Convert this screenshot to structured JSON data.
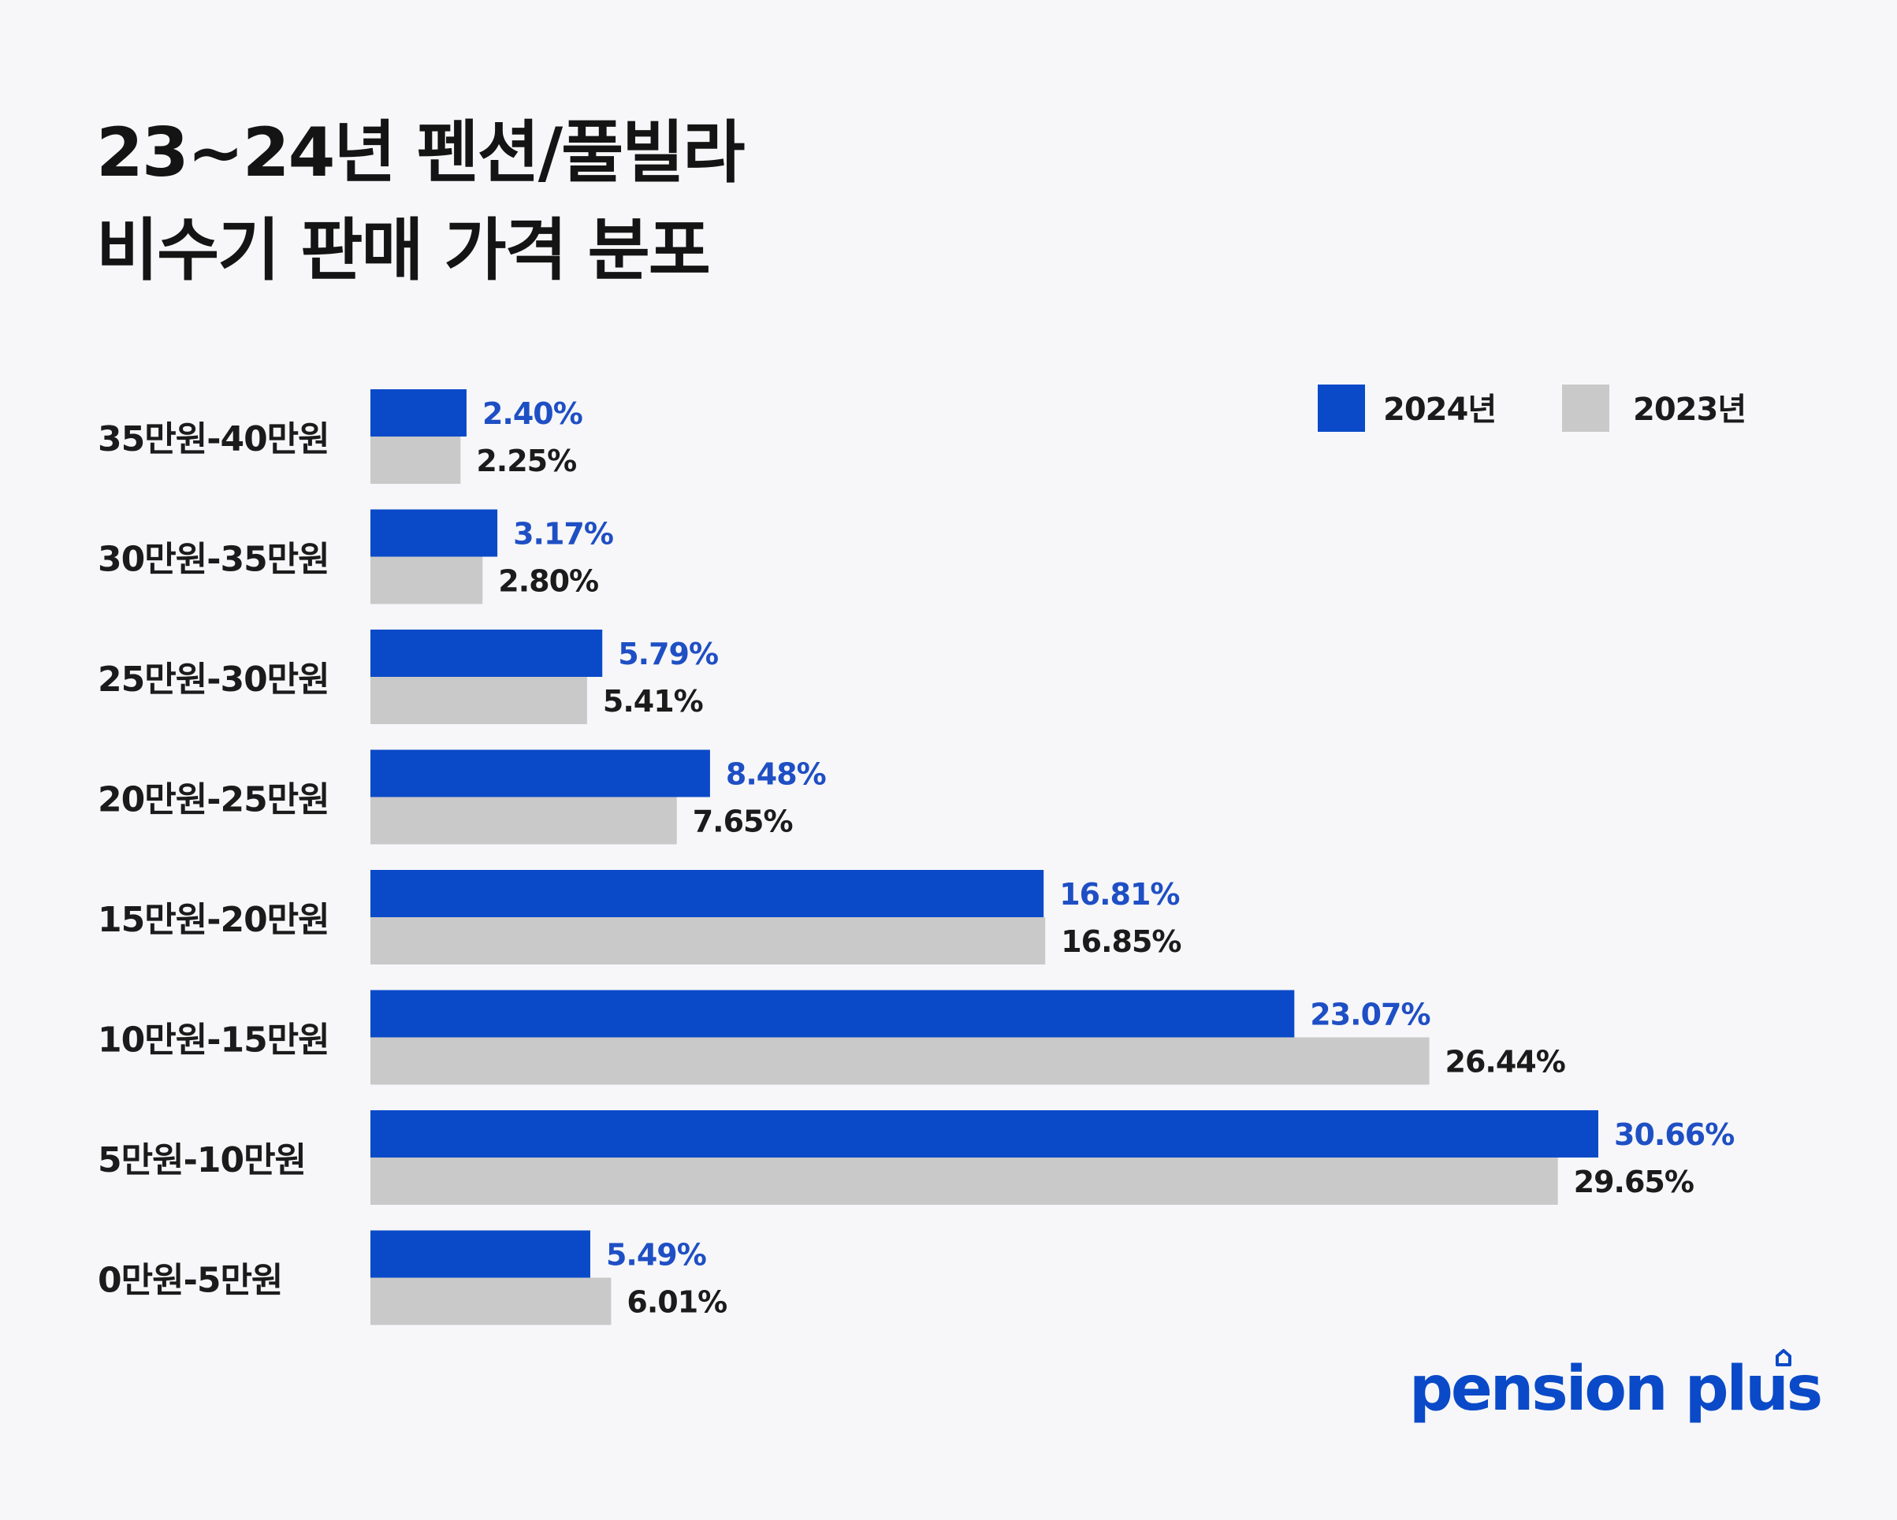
{
  "title_lines": [
    "23~24년 펜션/풀빌라",
    "비수기 판매 가격 분포"
  ],
  "brand": "pension plus",
  "colors": {
    "series_2024": "#0a4ac8",
    "series_2023": "#c9c9c9",
    "label_2024": "#1f4fc4",
    "label_2023": "#1b1b1b"
  },
  "chart_data": {
    "type": "bar",
    "orientation": "horizontal",
    "title": "23~24년 펜션/풀빌라 비수기 판매 가격 분포",
    "categories": [
      "35만원-40만원",
      "30만원-35만원",
      "25만원-30만원",
      "20만원-25만원",
      "15만원-20만원",
      "10만원-15만원",
      "5만원-10만원",
      "0만원-5만원"
    ],
    "series": [
      {
        "name": "2024년",
        "values": [
          2.4,
          3.17,
          5.79,
          8.48,
          16.81,
          23.07,
          30.66,
          5.49
        ],
        "labels": [
          "2.40%",
          "3.17%",
          "5.79%",
          "8.48%",
          "16.81%",
          "23.07%",
          "30.66%",
          "5.49%"
        ]
      },
      {
        "name": "2023년",
        "values": [
          2.25,
          2.8,
          5.41,
          7.65,
          16.85,
          26.44,
          29.65,
          6.01
        ],
        "labels": [
          "2.25%",
          "2.80%",
          "5.41%",
          "7.65%",
          "16.85%",
          "26.44%",
          "29.65%",
          "6.01%"
        ]
      }
    ],
    "xlabel": "",
    "ylabel": "",
    "xlim": [
      0,
      30.66
    ],
    "grid": false,
    "legend": "top-right"
  }
}
